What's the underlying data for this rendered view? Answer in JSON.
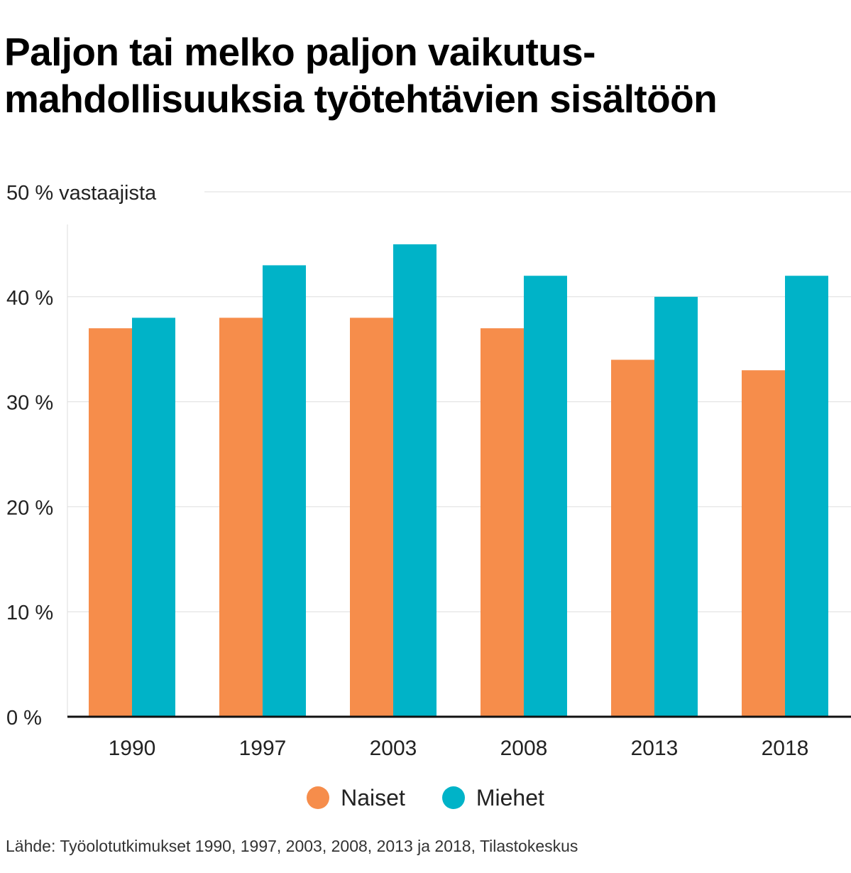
{
  "header": {
    "title_line1": "Paljon tai melko paljon vaikutus-",
    "title_line2": "mahdollisuuksia työtehtävien sisältöön"
  },
  "chart_data": {
    "type": "bar",
    "title": "Paljon tai melko paljon vaikutusmahdollisuuksia työtehtävien sisältöön",
    "xlabel": "",
    "ylabel": "50 % vastaajista",
    "ylim": [
      0,
      50
    ],
    "yticks": [
      {
        "value": 0,
        "label": "0 %"
      },
      {
        "value": 10,
        "label": "10 %"
      },
      {
        "value": 20,
        "label": "20 %"
      },
      {
        "value": 30,
        "label": "30 %"
      },
      {
        "value": 40,
        "label": "40 %"
      },
      {
        "value": 50,
        "label": "50 % vastaajista"
      }
    ],
    "categories": [
      "1990",
      "1997",
      "2003",
      "2008",
      "2013",
      "2018"
    ],
    "series": [
      {
        "name": "Naiset",
        "color": "#f68d4b",
        "values": [
          37,
          38,
          38,
          37,
          34,
          33
        ]
      },
      {
        "name": "Miehet",
        "color": "#00b3c8",
        "values": [
          38,
          43,
          45,
          42,
          40,
          42
        ]
      }
    ],
    "grid": true,
    "legend_position": "bottom"
  },
  "legend": {
    "items": [
      {
        "label": "Naiset",
        "color": "#f68d4b"
      },
      {
        "label": "Miehet",
        "color": "#00b3c8"
      }
    ]
  },
  "footer": {
    "source": "Lähde: Työolotutkimukset 1990, 1997, 2003, 2008, 2013 ja 2018, Tilastokeskus"
  }
}
